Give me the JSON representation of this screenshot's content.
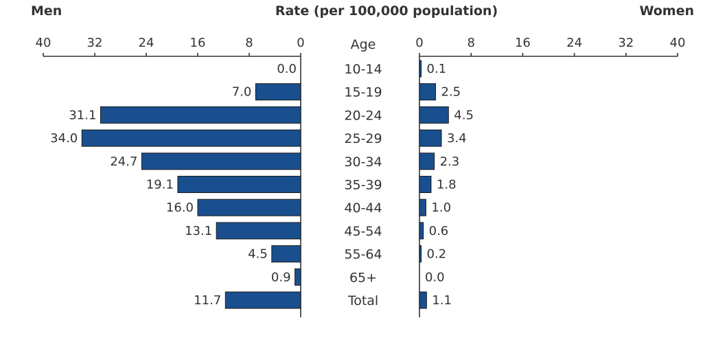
{
  "chart_data": {
    "type": "bar",
    "orientation": "horizontal",
    "layout": "back-to-back",
    "title": "Rate (per 100,000 population)",
    "category_header": "Age",
    "categories": [
      "10-14",
      "15-19",
      "20-24",
      "25-29",
      "30-34",
      "35-39",
      "40-44",
      "45-54",
      "55-64",
      "65+",
      "Total"
    ],
    "series": [
      {
        "name": "Men",
        "values": [
          0.0,
          7.0,
          31.1,
          34.0,
          24.7,
          19.1,
          16.0,
          13.1,
          4.5,
          0.9,
          11.7
        ]
      },
      {
        "name": "Women",
        "values": [
          0.1,
          2.5,
          4.5,
          3.4,
          2.3,
          1.8,
          1.0,
          0.6,
          0.2,
          0.0,
          1.1
        ]
      }
    ],
    "value_labels": {
      "Men": [
        "0.0",
        "7.0",
        "31.1",
        "34.0",
        "24.7",
        "19.1",
        "16.0",
        "13.1",
        "4.5",
        "0.9",
        "11.7"
      ],
      "Women": [
        "0.1",
        "2.5",
        "4.5",
        "3.4",
        "2.3",
        "1.8",
        "1.0",
        "0.6",
        "0.2",
        "0.0",
        "1.1"
      ]
    },
    "xlim": [
      0,
      40
    ],
    "ticks": [
      0,
      8,
      16,
      24,
      32,
      40
    ],
    "tick_labels": [
      "0",
      "8",
      "16",
      "24",
      "32",
      "40"
    ],
    "grid": false,
    "legend": "none",
    "colors": {
      "bar": "#1a4f8f",
      "outline": "#1a1a1a",
      "text": "#333333"
    }
  }
}
